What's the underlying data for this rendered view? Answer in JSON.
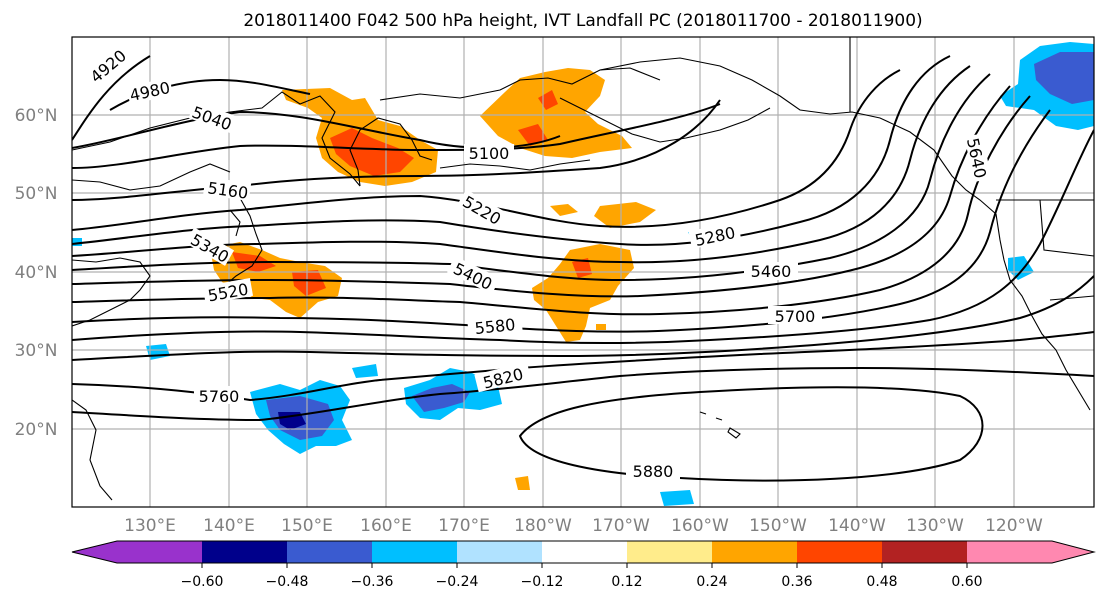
{
  "title": "2018011400 F042 500 hPa height, IVT Landfall PC (2018011700 - 2018011900)",
  "map": {
    "lat_labels": [
      "60°N",
      "50°N",
      "40°N",
      "30°N",
      "20°N"
    ],
    "lon_labels": [
      "130°E",
      "140°E",
      "150°E",
      "160°E",
      "170°E",
      "180°W",
      "170°W",
      "160°W",
      "150°W",
      "140°W",
      "130°W",
      "120°W"
    ],
    "contour_labels": [
      "4920",
      "4980",
      "5040",
      "5100",
      "5160",
      "5220",
      "5280",
      "5340",
      "5400",
      "5460",
      "5520",
      "5580",
      "5640",
      "5700",
      "5760",
      "5820",
      "5880"
    ]
  },
  "colorbar": {
    "tick_labels": [
      "−0.60",
      "−0.48",
      "−0.36",
      "−0.24",
      "−0.12",
      "0.12",
      "0.24",
      "0.36",
      "0.48",
      "0.60"
    ],
    "colors": [
      "#9932cc",
      "#00008b",
      "#3a5bd0",
      "#00bfff",
      "#b0e2ff",
      "#ffffff",
      "#ffec8b",
      "#ffa500",
      "#ff4500",
      "#b22222",
      "#ff88b0"
    ]
  },
  "colors": {
    "pos_low": "#ffec8b",
    "pos_mid": "#ffa500",
    "pos_high": "#ff4500",
    "neg_low": "#b0e2ff",
    "neg_mid": "#00bfff",
    "neg_high": "#3a5bd0",
    "neg_max": "#00008b"
  }
}
